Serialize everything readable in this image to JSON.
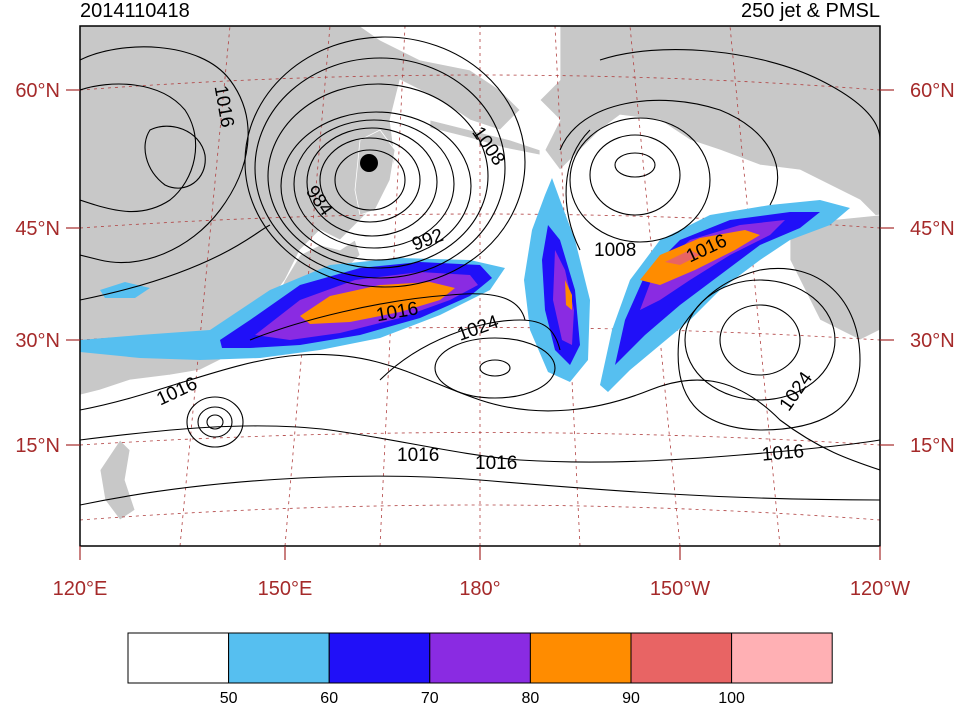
{
  "header": {
    "date": "2014110418",
    "title": "250 jet & PMSL"
  },
  "axes": {
    "lon_labels": [
      "120°E",
      "150°E",
      "180°",
      "150°W",
      "120°W"
    ],
    "lat_labels": [
      "60°N",
      "45°N",
      "30°N",
      "15°N"
    ]
  },
  "contour_labels": [
    "1016",
    "1008",
    "984",
    "992",
    "1016",
    "1024",
    "1008",
    "1016",
    "1016",
    "1024",
    "1016",
    "1016",
    "1016"
  ],
  "colorbar": {
    "levels": [
      "50",
      "60",
      "70",
      "80",
      "90",
      "100"
    ],
    "colors": [
      "#ffffff",
      "#56bff0",
      "#2010f8",
      "#8a2be2",
      "#ff8c00",
      "#e86464",
      "#ffb0b4"
    ]
  },
  "colors": {
    "land": "#c8c8c8",
    "grid": "#b04040",
    "axis_text": "#a52a2a"
  }
}
